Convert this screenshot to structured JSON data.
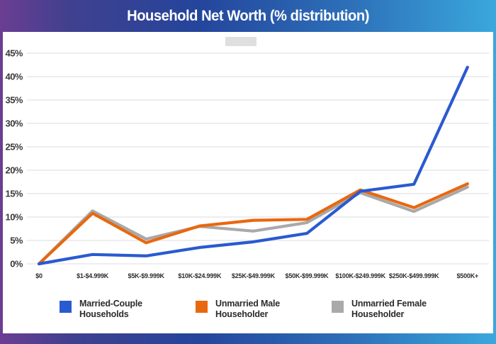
{
  "title": "Household Net Worth (% distribution)",
  "chart_data": {
    "type": "line",
    "title": "Household Net Worth (% distribution)",
    "xlabel": "",
    "ylabel": "",
    "ylim": [
      0,
      45
    ],
    "grid": true,
    "legend_position": "bottom",
    "ytick_labels": [
      "0%",
      "5%",
      "10%",
      "15%",
      "20%",
      "25%",
      "30%",
      "35%",
      "40%",
      "45%"
    ],
    "categories": [
      "$0",
      "$1-$4.999K",
      "$5K-$9.999K",
      "$10K-$24.999K",
      "$25K-$49.999K",
      "$50K-$99.999K",
      "$100K-$249.999K",
      "$250K-$499.999K",
      "$500K+"
    ],
    "series": [
      {
        "name": "Married-Couple Households",
        "color": "#2a5ad0",
        "values": [
          0,
          2,
          1.7,
          3.5,
          4.7,
          6.5,
          15.5,
          17,
          42
        ]
      },
      {
        "name": "Unmarried Male Householder",
        "color": "#e8680f",
        "values": [
          0,
          10.8,
          4.5,
          8.1,
          9.3,
          9.5,
          15.8,
          12,
          17.1
        ]
      },
      {
        "name": "Unmarried Female Householder",
        "color": "#a9a9a9",
        "values": [
          0,
          11.3,
          5.3,
          8,
          7,
          8.8,
          15.2,
          11.2,
          16.4
        ]
      }
    ]
  },
  "legend": {
    "items": [
      {
        "line1": "Married-Couple",
        "line2": "Households"
      },
      {
        "line1": "Unmarried Male",
        "line2": "Householder"
      },
      {
        "line1": "Unmarried Female",
        "line2": "Householder"
      }
    ]
  },
  "colors": {
    "grid": "#e2e2e2",
    "axis_text": "#3a3a3a",
    "xlabel_text": "#2b2b2b",
    "panel_background": "#ffffff",
    "frame_gradient_left": "#6b3e92",
    "frame_gradient_mid": "#24459c",
    "frame_gradient_right": "#3aa8dc",
    "artifact_box": "#d9d9d9"
  }
}
